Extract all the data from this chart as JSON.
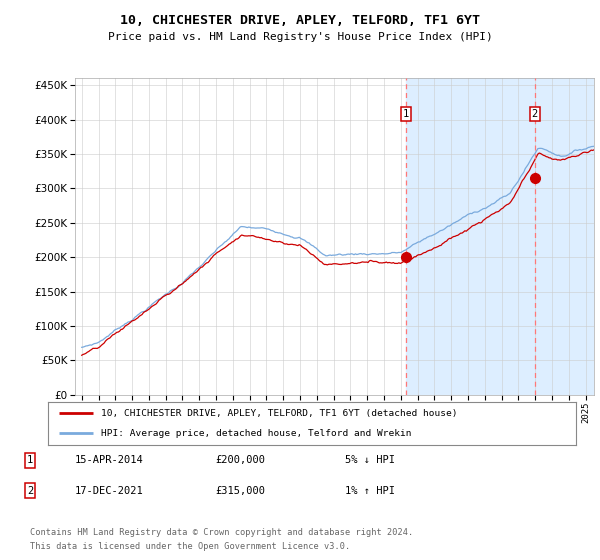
{
  "title": "10, CHICHESTER DRIVE, APLEY, TELFORD, TF1 6YT",
  "subtitle": "Price paid vs. HM Land Registry's House Price Index (HPI)",
  "legend_line1": "10, CHICHESTER DRIVE, APLEY, TELFORD, TF1 6YT (detached house)",
  "legend_line2": "HPI: Average price, detached house, Telford and Wrekin",
  "transaction1_date": "15-APR-2014",
  "transaction1_price": 200000,
  "transaction1_note": "5% ↓ HPI",
  "transaction2_date": "17-DEC-2021",
  "transaction2_price": 315000,
  "transaction2_note": "1% ↑ HPI",
  "footer1": "Contains HM Land Registry data © Crown copyright and database right 2024.",
  "footer2": "This data is licensed under the Open Government Licence v3.0.",
  "hpi_color": "#7aaadd",
  "price_color": "#cc0000",
  "highlight_color": "#ddeeff",
  "vline_color": "#ff7777",
  "marker_color": "#cc0000",
  "background_color": "#ffffff",
  "grid_color": "#cccccc",
  "ylim_min": 0,
  "ylim_max": 460000,
  "transaction1_year": 2014.29,
  "transaction2_year": 2021.96
}
